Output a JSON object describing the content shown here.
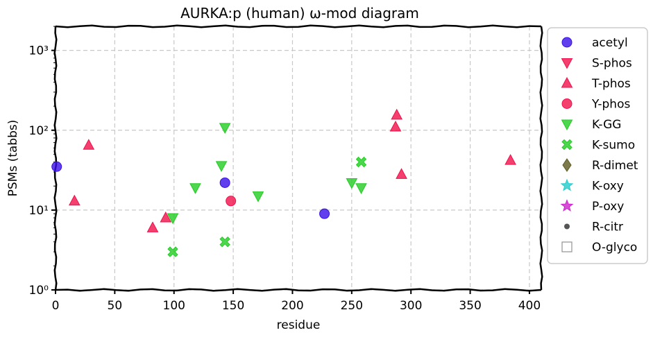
{
  "chart_data": {
    "type": "scatter",
    "title": "AURKA:p (human) ω-mod diagram",
    "xlabel": "residue",
    "ylabel": "PSMs (tabbs)",
    "xlim": [
      0,
      410
    ],
    "ylim": [
      1,
      2000
    ],
    "yscale": "log",
    "x_ticks": [
      0,
      50,
      100,
      150,
      200,
      250,
      300,
      350,
      400
    ],
    "y_ticks": [
      {
        "value": 1,
        "label": "10⁰"
      },
      {
        "value": 10,
        "label": "10¹"
      },
      {
        "value": 100,
        "label": "10²"
      },
      {
        "value": 1000,
        "label": "10³"
      }
    ],
    "grid": true,
    "legend_position": "outside-right",
    "series": [
      {
        "name": "acetyl",
        "marker": "circle",
        "color": "#3a0fe8",
        "points": [
          [
            1,
            35
          ],
          [
            143,
            22
          ],
          [
            227,
            9
          ]
        ]
      },
      {
        "name": "S-phos",
        "marker": "triangle-down",
        "color": "#f0104a",
        "points": []
      },
      {
        "name": "T-phos",
        "marker": "triangle-up",
        "color": "#f0104a",
        "points": [
          [
            16,
            13
          ],
          [
            28,
            65
          ],
          [
            82,
            6
          ],
          [
            93,
            8
          ],
          [
            287,
            110
          ],
          [
            288,
            155
          ],
          [
            292,
            28
          ],
          [
            384,
            42
          ]
        ]
      },
      {
        "name": "Y-phos",
        "marker": "circle",
        "color": "#f0104a",
        "points": [
          [
            148,
            13
          ]
        ]
      },
      {
        "name": "K-GG",
        "marker": "triangle-down",
        "color": "#22cc22",
        "points": [
          [
            99,
            8
          ],
          [
            118,
            19
          ],
          [
            140,
            36
          ],
          [
            143,
            108
          ],
          [
            171,
            15
          ],
          [
            250,
            22
          ],
          [
            258,
            19
          ]
        ]
      },
      {
        "name": "K-sumo",
        "marker": "x",
        "color": "#22cc22",
        "points": [
          [
            99,
            3
          ],
          [
            143,
            4
          ],
          [
            258,
            40
          ]
        ]
      },
      {
        "name": "R-dimet",
        "marker": "diamond",
        "color": "#5c5a1e",
        "points": []
      },
      {
        "name": "K-oxy",
        "marker": "star",
        "color": "#22cccc",
        "points": []
      },
      {
        "name": "P-oxy",
        "marker": "star",
        "color": "#cc22cc",
        "points": []
      },
      {
        "name": "R-citr",
        "marker": "dot",
        "color": "#555555",
        "points": []
      },
      {
        "name": "O-glyco",
        "marker": "square-open",
        "color": "#999999",
        "points": []
      }
    ]
  }
}
